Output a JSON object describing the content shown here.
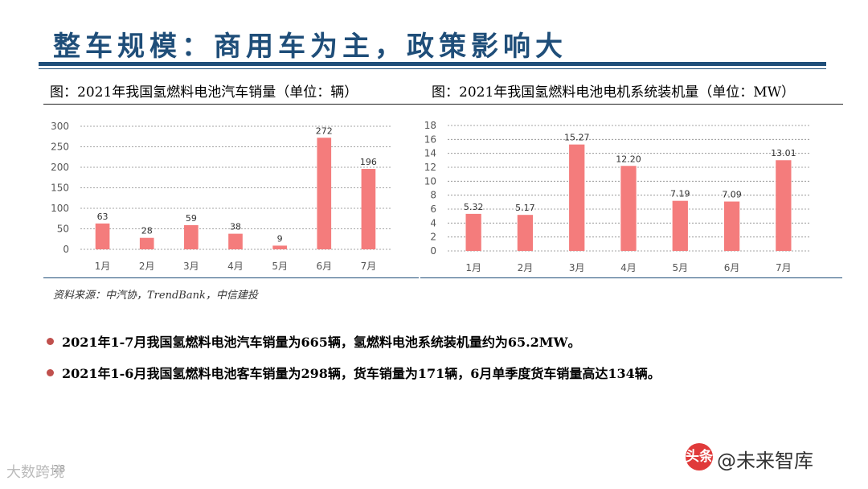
{
  "slide": {
    "title": "整车规模：商用车为主，政策影响大",
    "page_number": "28",
    "source": "资料来源：中汽协，TrendBank，中信建投",
    "left_caption": "图：2021年我国氢燃料电池汽车销量（单位：辆）",
    "right_caption": "图：2021年我国氢燃料电池电机系统装机量（单位：MW）",
    "bullets": [
      "2021年1-7月我国氢燃料电池汽车销量为665辆，氢燃料电池系统装机量约为65.2MW。",
      "2021年1-6月我国氢燃料电池客车销量为298辆，货车销量为171辆，6月单季度货车销量高达134辆。"
    ],
    "watermark_left": "大数跨境",
    "watermark_logo": "头条",
    "watermark_right": "@未来智库",
    "bullet_color": "#c0504d",
    "title_color": "#1f4e79"
  },
  "chart_data": [
    {
      "type": "bar",
      "categories": [
        "1月",
        "2月",
        "3月",
        "4月",
        "5月",
        "6月",
        "7月"
      ],
      "values": [
        63,
        28,
        59,
        38,
        9,
        272,
        196
      ],
      "data_labels": [
        "63",
        "28",
        "59",
        "38",
        "9",
        "272",
        "196"
      ],
      "ylim": [
        0,
        300
      ],
      "yticks": [
        "0",
        "50",
        "100",
        "150",
        "200",
        "250",
        "300"
      ],
      "grid": true,
      "bar_color": "#f47c7c"
    },
    {
      "type": "bar",
      "categories": [
        "1月",
        "2月",
        "3月",
        "4月",
        "5月",
        "6月",
        "7月"
      ],
      "values": [
        5.32,
        5.17,
        15.27,
        12.2,
        7.19,
        7.09,
        13.01
      ],
      "data_labels": [
        "5.32",
        "5.17",
        "15.27",
        "12.20",
        "7.19",
        "7.09",
        "13.01"
      ],
      "ylim": [
        0,
        18
      ],
      "yticks": [
        "0",
        "2",
        "4",
        "6",
        "8",
        "10",
        "12",
        "14",
        "16",
        "18"
      ],
      "grid": true,
      "bar_color": "#f47c7c"
    }
  ]
}
